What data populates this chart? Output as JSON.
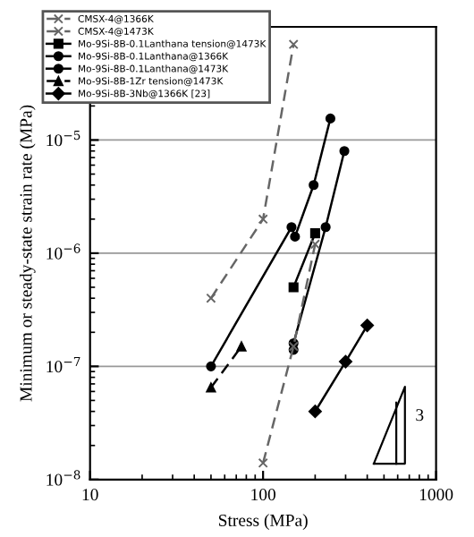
{
  "chart_data": {
    "type": "line",
    "xlabel": "Stress (MPa)",
    "ylabel": "Minimum or steady-state strain rate (MPa)",
    "log": "xy",
    "xlim": [
      10,
      1000
    ],
    "xticks": [
      10,
      100,
      1000
    ],
    "ylim": [
      1e-08,
      0.0001
    ],
    "yticks": [
      {
        "value": 1e-08,
        "label": "10$^{−8}$"
      },
      {
        "value": 1e-07,
        "label": "10$^{−7}$"
      },
      {
        "value": 1e-06,
        "label": "10$^{−6}$"
      },
      {
        "value": 1e-05,
        "label": "10$^{−5}$"
      }
    ],
    "grid": "y",
    "legend": "top left",
    "annotations": [
      "3"
    ],
    "series": [
      {
        "name": "CMSX-4@1366K",
        "color": "#666666",
        "marker": "cross",
        "line_style": "dashed",
        "x": [
          100,
          150,
          200
        ],
        "values": [
          1.4e-08,
          1.5e-07,
          1.2e-06
        ]
      },
      {
        "name": "CMSX-4@1473K",
        "color": "#666666",
        "marker": "cross",
        "line_style": "dashed",
        "x": [
          50,
          100,
          150
        ],
        "values": [
          4e-07,
          2e-06,
          7e-05
        ]
      },
      {
        "name": "Mo-9Si-8B-0.1Lanthana tension@1473K",
        "color": "#000000",
        "marker": "square",
        "line_style": "solid",
        "x": [
          150,
          200
        ],
        "values": [
          5e-07,
          1.5e-06
        ]
      },
      {
        "name": "Mo-9Si-8B-0.1Lanthana@1366K",
        "color": "#000000",
        "marker": "circle",
        "line_style": "solid",
        "x": [
          150,
          150,
          230,
          295
        ],
        "values": [
          1.4e-07,
          1.6e-07,
          1.7e-06,
          8e-06
        ]
      },
      {
        "name": "Mo-9Si-8B-0.1Lanthana@1473K",
        "color": "#000000",
        "marker": "circle",
        "line_style": "solid",
        "x": [
          50,
          146,
          153,
          196,
          245
        ],
        "values": [
          1e-07,
          1.7e-06,
          1.4e-06,
          4e-06,
          1.55e-05
        ]
      },
      {
        "name": "Mo-9Si-8B-1Zr tension@1473K",
        "color": "#000000",
        "marker": "triangle",
        "line_style": "dashed",
        "x": [
          50,
          75
        ],
        "values": [
          6.5e-08,
          1.5e-07
        ]
      },
      {
        "name": "Mo-9Si-8B-3Nb@1366K [23]",
        "color": "#000000",
        "marker": "diamond",
        "line_style": "solid",
        "x": [
          200,
          300,
          400
        ],
        "values": [
          4e-08,
          1.1e-07,
          2.3e-07
        ]
      }
    ]
  }
}
